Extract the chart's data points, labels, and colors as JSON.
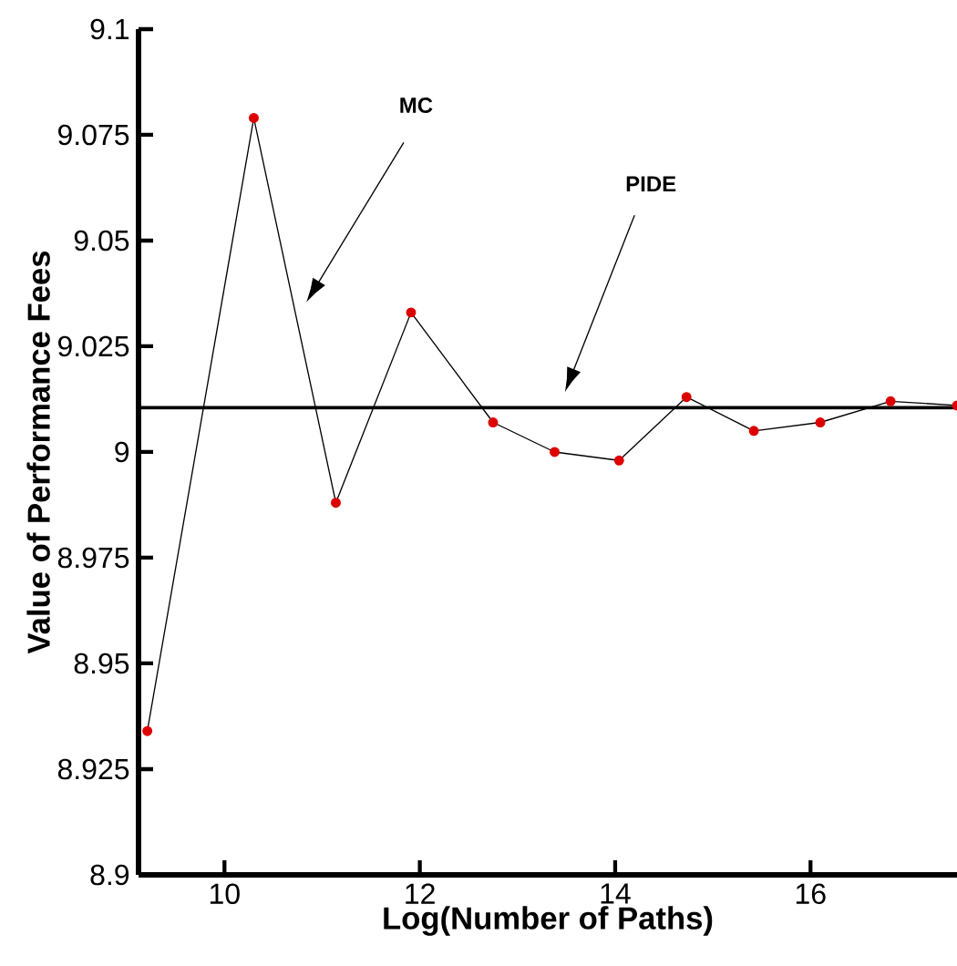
{
  "chart_data": {
    "type": "line",
    "xlabel": "Log(Number of Paths)",
    "ylabel": "Value of Performance Fees",
    "x": [
      9.21,
      10.3,
      11.14,
      11.91,
      12.75,
      13.38,
      14.04,
      14.73,
      15.42,
      16.1,
      16.82,
      17.5
    ],
    "series": [
      {
        "color": "#dd0000",
        "values": [
          8.934,
          9.079,
          8.988,
          9.033,
          9.007,
          9.0,
          8.998,
          9.013,
          9.005,
          9.007,
          9.012,
          9.011
        ]
      }
    ],
    "ref_lines": [
      {
        "axis": "y",
        "value": 9.0105,
        "color": "#000000"
      }
    ],
    "annotations": [
      "MC",
      "PIDE"
    ],
    "xlim": [
      9.12,
      17.5
    ],
    "ylim": [
      8.9,
      9.1
    ],
    "xticks": [
      10,
      12,
      14,
      16
    ],
    "yticks": [
      8.9,
      8.925,
      8.95,
      8.975,
      9,
      9.025,
      9.05,
      9.075,
      9.1
    ],
    "marker": "circle",
    "line_style": "solid",
    "grid": false
  }
}
